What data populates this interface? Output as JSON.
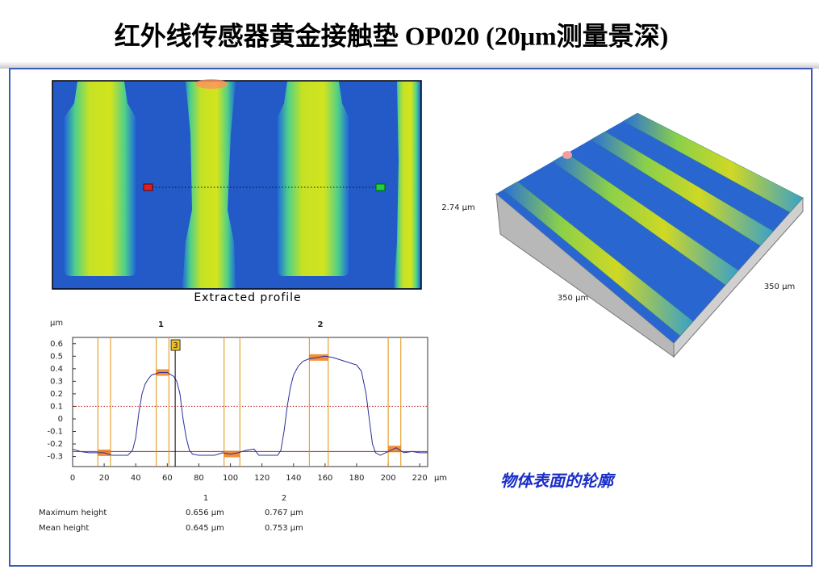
{
  "title": "红外线传感器黄金接触垫 OP020 (20μm测量景深)",
  "heatmap": {
    "caption": "Extracted profile"
  },
  "surface3d": {
    "z_label": "2.74 µm",
    "x_label": "350 µm",
    "y_label": "350 µm"
  },
  "chart_data": {
    "type": "line",
    "y_unit": "µm",
    "x_unit": "µm",
    "color": "#2b2f9a",
    "x": [
      0,
      5,
      10,
      15,
      20,
      25,
      30,
      35,
      38,
      40,
      42,
      44,
      46,
      48,
      50,
      55,
      60,
      64,
      66,
      68,
      70,
      72,
      74,
      76,
      80,
      90,
      95,
      100,
      105,
      110,
      115,
      118,
      125,
      130,
      132,
      134,
      136,
      138,
      140,
      143,
      146,
      150,
      155,
      160,
      165,
      170,
      175,
      180,
      183,
      186,
      188,
      190,
      192,
      195,
      200,
      205,
      210,
      215,
      220,
      225
    ],
    "values": [
      -0.24,
      -0.26,
      -0.27,
      -0.27,
      -0.27,
      -0.29,
      -0.29,
      -0.29,
      -0.25,
      -0.15,
      0.05,
      0.2,
      0.28,
      0.32,
      0.35,
      0.37,
      0.37,
      0.34,
      0.3,
      0.2,
      0.0,
      -0.15,
      -0.25,
      -0.28,
      -0.29,
      -0.29,
      -0.27,
      -0.28,
      -0.27,
      -0.25,
      -0.24,
      -0.29,
      -0.29,
      -0.29,
      -0.25,
      -0.1,
      0.1,
      0.25,
      0.35,
      0.42,
      0.46,
      0.48,
      0.49,
      0.5,
      0.49,
      0.47,
      0.45,
      0.43,
      0.38,
      0.2,
      0.0,
      -0.2,
      -0.27,
      -0.29,
      -0.26,
      -0.23,
      -0.27,
      -0.26,
      -0.27,
      -0.27
    ],
    "xlim": [
      0,
      225
    ],
    "ylim": [
      -0.38,
      0.65
    ],
    "xticks": [
      0,
      20,
      40,
      60,
      80,
      100,
      120,
      140,
      160,
      180,
      200,
      220
    ],
    "yticks": [
      -0.3,
      -0.2,
      -0.1,
      0,
      0.1,
      0.2,
      0.3,
      0.4,
      0.5,
      0.6
    ],
    "cursors": [
      16,
      24,
      53,
      61,
      96,
      106,
      150,
      162,
      200,
      208
    ],
    "cursor_color": "#e0900a",
    "regions": [
      {
        "x0": 16,
        "x1": 24,
        "y": -0.27
      },
      {
        "x0": 53,
        "x1": 61,
        "y": 0.37
      },
      {
        "x0": 96,
        "x1": 106,
        "y": -0.28
      },
      {
        "x0": 150,
        "x1": 162,
        "y": 0.49
      },
      {
        "x0": 200,
        "x1": 208,
        "y": -0.24
      }
    ],
    "hlines": [
      {
        "value": -0.26,
        "color": "#b01818",
        "dotted": false
      },
      {
        "value": 0.1,
        "color": "#c02020",
        "dotted": true
      }
    ],
    "annotations": [
      {
        "text": "1",
        "x": 56,
        "boxed": false
      },
      {
        "text": "2",
        "x": 157,
        "boxed": false
      },
      {
        "text": "3",
        "x": 65,
        "boxed": true
      }
    ]
  },
  "note": "物体表面的轮廓",
  "table": {
    "header": [
      "1",
      "2"
    ],
    "rows": [
      [
        "Maximum height",
        "0.656 µm",
        "0.767 µm"
      ],
      [
        "Mean height",
        "0.645 µm",
        "0.753 µm"
      ]
    ]
  }
}
